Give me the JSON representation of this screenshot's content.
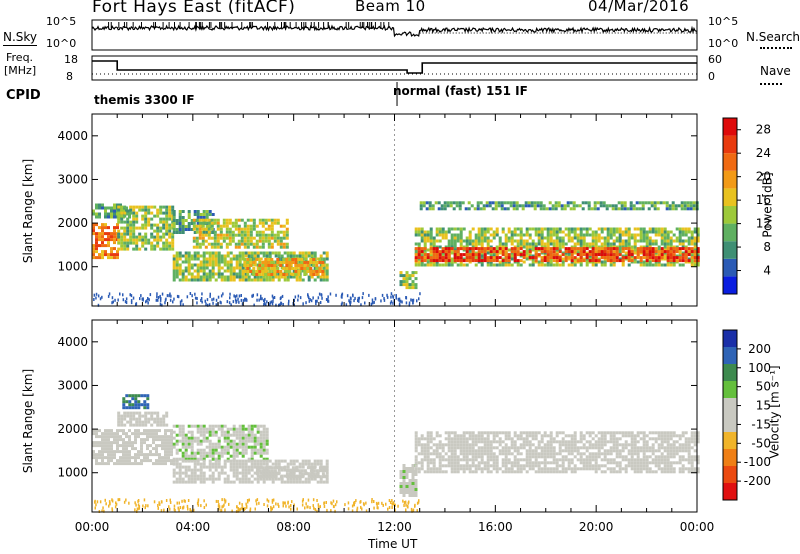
{
  "header": {
    "title": "Fort Hays East (fitACF)",
    "beam": "Beam 10",
    "date": "04/Mar/2016"
  },
  "noise_panel": {
    "left_label": "N.Sky",
    "right_label": "N.Search",
    "left_ticks": [
      "10^5",
      "10^0"
    ],
    "right_ticks": [
      "10^5",
      "10^0"
    ]
  },
  "freq_panel": {
    "left_label_line1": "Freq.",
    "left_label_line2": "[MHz]",
    "right_label": "Nave",
    "left_ticks": [
      "18",
      "8"
    ],
    "right_ticks": [
      "60",
      "0"
    ]
  },
  "cpid": {
    "label": "CPID",
    "program_1": "themis 3300 IF",
    "program_2": "normal (fast) 151 IF"
  },
  "colors": {
    "power_scale": [
      "#0a1ee0",
      "#2b5bb5",
      "#3f8f74",
      "#5fb061",
      "#9dc93a",
      "#e8c21f",
      "#f29a17",
      "#f06a12",
      "#e83a0e",
      "#de0a0a"
    ],
    "velocity_scale": [
      "#1a2fa8",
      "#2f64b6",
      "#3d8a4e",
      "#64bf3c",
      "#c9c9c1",
      "#c9c9c1",
      "#f0b42a",
      "#ef7f15",
      "#eb4a10",
      "#e01010"
    ]
  },
  "chart_data": [
    {
      "type": "heatmap",
      "name": "power",
      "title": "",
      "xlabel": "Time UT",
      "ylabel": "Slant Range [km]",
      "xlim": [
        0,
        24
      ],
      "ylim": [
        100,
        4500
      ],
      "x_ticks": [
        "00:00",
        "04:00",
        "08:00",
        "12:00",
        "16:00",
        "20:00",
        "00:00"
      ],
      "y_ticks": [
        "1000",
        "2000",
        "3000",
        "4000"
      ],
      "colorbar_label": "Power [dB]",
      "colorbar_ticks": [
        "4",
        "8",
        "12",
        "16",
        "20",
        "24",
        "28"
      ],
      "colorbar_range": [
        0,
        30
      ],
      "regions": [
        {
          "t0": 0.0,
          "t1": 1.0,
          "r0": 1200,
          "r1": 2000,
          "level": 22
        },
        {
          "t0": 0.0,
          "t1": 1.5,
          "r0": 2150,
          "r1": 2450,
          "level": 10
        },
        {
          "t0": 1.0,
          "t1": 3.2,
          "r0": 1400,
          "r1": 2400,
          "level": 13
        },
        {
          "t0": 3.2,
          "t1": 4.8,
          "r0": 1800,
          "r1": 2300,
          "level": 9
        },
        {
          "t0": 4.0,
          "t1": 7.8,
          "r0": 1450,
          "r1": 2100,
          "level": 14
        },
        {
          "t0": 3.2,
          "t1": 9.3,
          "r0": 700,
          "r1": 1350,
          "level": 13
        },
        {
          "t0": 6.0,
          "t1": 9.2,
          "r0": 850,
          "r1": 1200,
          "level": 18
        },
        {
          "t0": 12.2,
          "t1": 12.8,
          "r0": 500,
          "r1": 900,
          "level": 12
        },
        {
          "t0": 12.8,
          "t1": 24.0,
          "r0": 1050,
          "r1": 1900,
          "level": 13
        },
        {
          "t0": 12.8,
          "t1": 24.0,
          "r0": 1150,
          "r1": 1450,
          "level": 25
        },
        {
          "t0": 13.0,
          "t1": 24.0,
          "r0": 2300,
          "r1": 2500,
          "level": 10
        }
      ]
    },
    {
      "type": "heatmap",
      "name": "velocity",
      "title": "",
      "xlabel": "Time UT",
      "ylabel": "Slant Range [km]",
      "xlim": [
        0,
        24
      ],
      "ylim": [
        100,
        4500
      ],
      "x_ticks": [
        "00:00",
        "04:00",
        "08:00",
        "12:00",
        "16:00",
        "20:00",
        "00:00"
      ],
      "y_ticks": [
        "1000",
        "2000",
        "3000",
        "4000"
      ],
      "colorbar_label": "Velocity [m s⁻¹]",
      "colorbar_ticks": [
        "200",
        "100",
        "50",
        "15",
        "-15",
        "-50",
        "-100",
        "-200"
      ],
      "colorbar_range": [
        -250,
        250
      ],
      "regions": [
        {
          "t0": 0.0,
          "t1": 3.2,
          "r0": 1200,
          "r1": 2000,
          "level": 0
        },
        {
          "t0": 1.0,
          "t1": 3.0,
          "r0": 2100,
          "r1": 2400,
          "level": 0
        },
        {
          "t0": 1.2,
          "t1": 2.2,
          "r0": 2500,
          "r1": 2800,
          "level": 150
        },
        {
          "t0": 3.2,
          "t1": 7.0,
          "r0": 1300,
          "r1": 2100,
          "level": 40
        },
        {
          "t0": 3.2,
          "t1": 9.3,
          "r0": 750,
          "r1": 1300,
          "level": 30
        },
        {
          "t0": 6.5,
          "t1": 9.3,
          "r0": 900,
          "r1": 1150,
          "level": 0
        },
        {
          "t0": 12.2,
          "t1": 12.8,
          "r0": 500,
          "r1": 1200,
          "level": 35
        },
        {
          "t0": 12.8,
          "t1": 24.0,
          "r0": 1050,
          "r1": 1950,
          "level": 0
        }
      ]
    }
  ],
  "xaxis_label": "Time UT"
}
